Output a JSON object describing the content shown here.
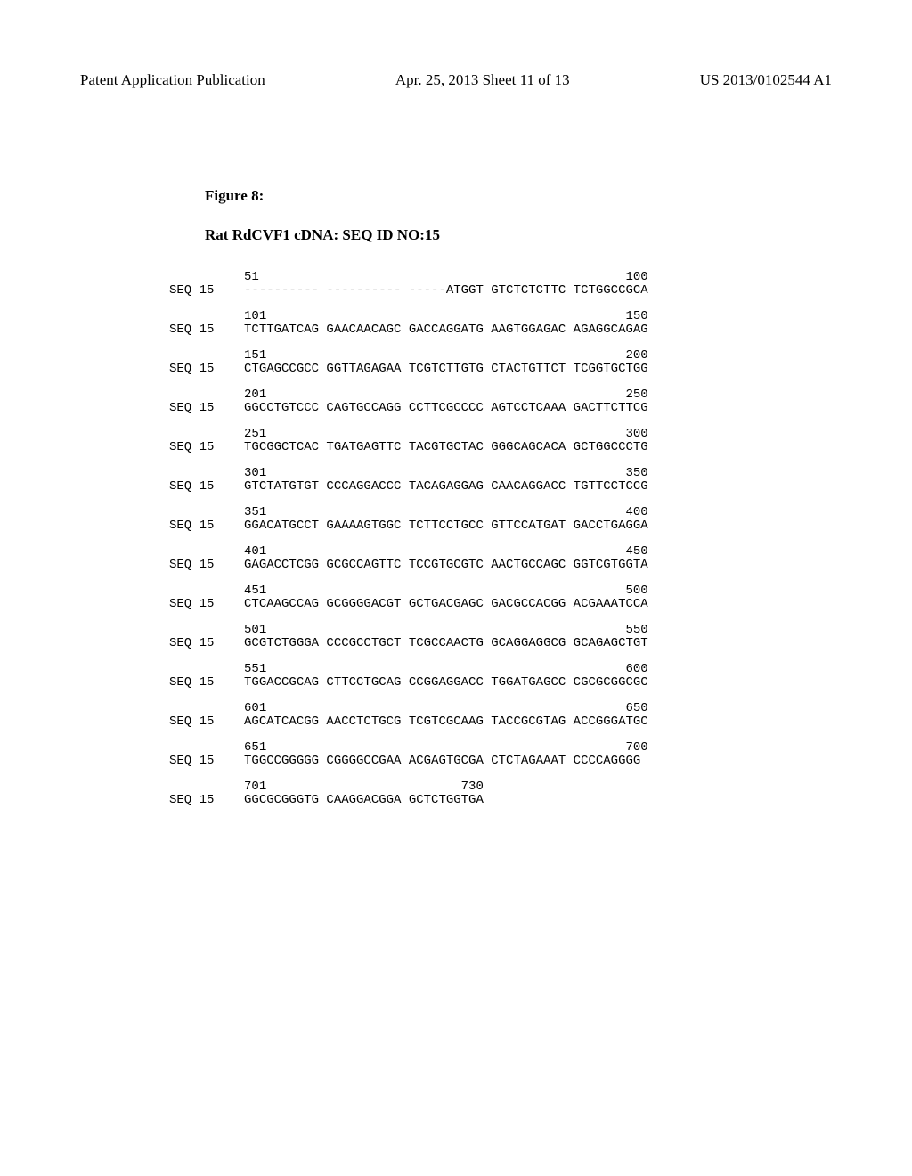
{
  "header": {
    "left": "Patent Application Publication",
    "center": "Apr. 25, 2013  Sheet 11 of 13",
    "right": "US 2013/0102544 A1"
  },
  "figure_label": "Figure 8:",
  "sequence_title": "Rat RdCVF1 cDNA: SEQ ID NO:15",
  "seq_label": "SEQ 15",
  "blocks": [
    {
      "num_left": "51",
      "num_right": "100",
      "seq": "---------- ---------- -----ATGGT GTCTCTCTTC TCTGGCCGCA"
    },
    {
      "num_left": "101",
      "num_right": "150",
      "seq": "TCTTGATCAG GAACAACAGC GACCAGGATG AAGTGGAGAC AGAGGCAGAG"
    },
    {
      "num_left": "151",
      "num_right": "200",
      "seq": "CTGAGCCGCC GGTTAGAGAA TCGTCTTGTG CTACTGTTCT TCGGTGCTGG"
    },
    {
      "num_left": "201",
      "num_right": "250",
      "seq": "GGCCTGTCCC CAGTGCCAGG CCTTCGCCCC AGTCCTCAAA GACTTCTTCG"
    },
    {
      "num_left": "251",
      "num_right": "300",
      "seq": "TGCGGCTCAC TGATGAGTTC TACGTGCTAC GGGCAGCACA GCTGGCCCTG"
    },
    {
      "num_left": "301",
      "num_right": "350",
      "seq": "GTCTATGTGT CCCAGGACCC TACAGAGGAG CAACAGGACC TGTTCCTCCG"
    },
    {
      "num_left": "351",
      "num_right": "400",
      "seq": "GGACATGCCT GAAAAGTGGC TCTTCCTGCC GTTCCATGAT GACCTGAGGA"
    },
    {
      "num_left": "401",
      "num_right": "450",
      "seq": "GAGACCTCGG GCGCCAGTTC TCCGTGCGTC AACTGCCAGC GGTCGTGGTA"
    },
    {
      "num_left": "451",
      "num_right": "500",
      "seq": "CTCAAGCCAG GCGGGGACGT GCTGACGAGC GACGCCACGG ACGAAATCCA"
    },
    {
      "num_left": "501",
      "num_right": "550",
      "seq": "GCGTCTGGGA CCCGCCTGCT TCGCCAACTG GCAGGAGGCG GCAGAGCTGT"
    },
    {
      "num_left": "551",
      "num_right": "600",
      "seq": "TGGACCGCAG CTTCCTGCAG CCGGAGGACC TGGATGAGCC CGCGCGGCGC"
    },
    {
      "num_left": "601",
      "num_right": "650",
      "seq": "AGCATCACGG AACCTCTGCG TCGTCGCAAG TACCGCGTAG ACCGGGATGC"
    },
    {
      "num_left": "651",
      "num_right": "700",
      "seq": "TGGCCGGGGG CGGGGCCGAA ACGAGTGCGA CTCTAGAAAT CCCCAGGGG"
    },
    {
      "num_left": "701",
      "num_right": "730",
      "seq": "GGCGCGGGTG CAAGGACGGA GCTCTGGTGA"
    }
  ],
  "layout": {
    "label_width": 10,
    "num_row_prefix_spaces": 10,
    "seq_col_start": 10,
    "block_text_width": 54
  },
  "typography": {
    "body_bg": "#ffffff",
    "text_color": "#000000",
    "header_font": "Times New Roman",
    "header_fontsize": 17,
    "mono_font": "Courier New",
    "mono_fontsize": 14,
    "bold_labels_fontsize": 17
  }
}
